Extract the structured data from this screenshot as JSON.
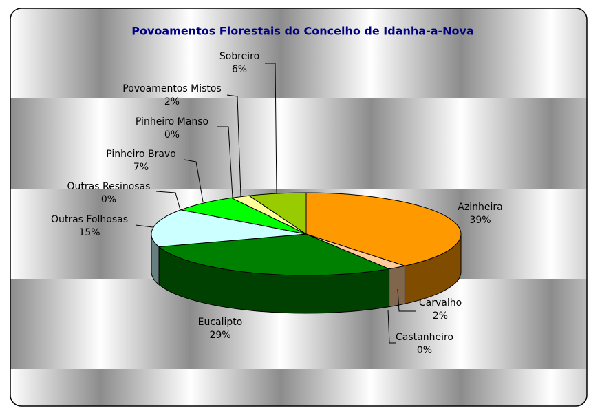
{
  "chart_data": {
    "type": "pie3d",
    "title": "Povoamentos Florestais do Concelho de Idanha-a-Nova",
    "categories": [
      "Azinheira",
      "Carvalho",
      "Castanheiro",
      "Eucalipto",
      "Outras Folhosas",
      "Outras Resinosas",
      "Pinheiro Bravo",
      "Pinheiro Manso",
      "Povoamentos Mistos",
      "Sobreiro"
    ],
    "values": [
      39,
      2,
      0,
      29,
      15,
      0,
      7,
      0,
      2,
      6
    ],
    "value_labels": [
      "39%",
      "2%",
      "0%",
      "29%",
      "15%",
      "0%",
      "7%",
      "0%",
      "2%",
      "6%"
    ],
    "colors": [
      "#ff9900",
      "#ffcc99",
      "#996633",
      "#008000",
      "#ccffff",
      "#3366ff",
      "#00ff00",
      "#ffcc00",
      "#ffff99",
      "#99cc00"
    ]
  }
}
